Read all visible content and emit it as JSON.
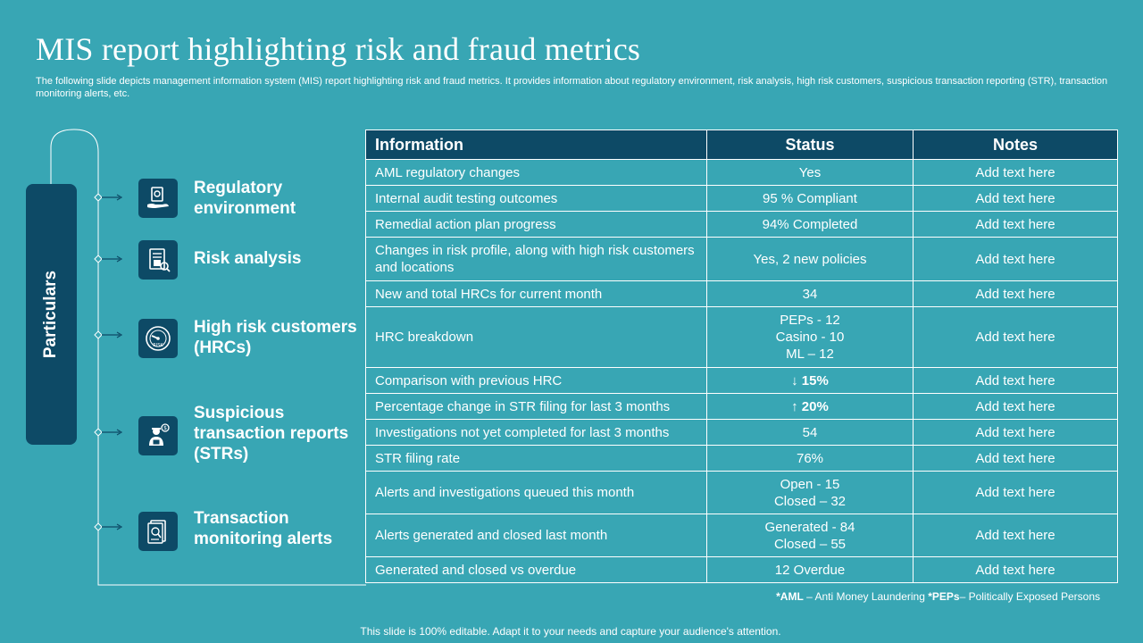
{
  "title": "MIS report highlighting risk and fraud metrics",
  "description": "The following slide depicts management information system (MIS) report highlighting risk and fraud metrics. It provides information about regulatory environment, risk analysis, high risk customers, suspicious transaction reporting (STR), transaction monitoring alerts, etc.",
  "particulars_label": "Particulars",
  "categories": [
    {
      "label": "Regulatory environment",
      "icon": "regulatory-icon"
    },
    {
      "label": "Risk analysis",
      "icon": "risk-analysis-icon"
    },
    {
      "label": "High risk customers (HRCs)",
      "icon": "risk-gauge-icon"
    },
    {
      "label": "Suspicious transaction reports (STRs)",
      "icon": "suspicious-report-icon"
    },
    {
      "label": "Transaction monitoring alerts",
      "icon": "monitoring-alert-icon"
    }
  ],
  "table": {
    "headers": [
      "Information",
      "Status",
      "Notes"
    ],
    "rows": [
      {
        "info": "AML regulatory changes",
        "status": "Yes",
        "notes": "Add text here"
      },
      {
        "info": "Internal  audit testing outcomes",
        "status": "95 % Compliant",
        "notes": "Add text here"
      },
      {
        "info": "Remedial action plan progress",
        "status": "94% Completed",
        "notes": "Add text here"
      },
      {
        "info": "Changes in risk profile, along with high risk customers and locations",
        "status": "Yes, 2 new policies",
        "notes": "Add text here"
      },
      {
        "info": "New and total HRCs for current month",
        "status": "34",
        "notes": "Add text here"
      },
      {
        "info": "HRC breakdown",
        "status_lines": [
          "PEPs - 12",
          "Casino - 10",
          "ML – 12"
        ],
        "notes": "Add text here"
      },
      {
        "info": "Comparison with previous HRC",
        "status": "↓ 15%",
        "status_bold": true,
        "notes": "Add text here"
      },
      {
        "info": "Percentage change in STR filing for last 3 months",
        "status": "↑ 20%",
        "status_bold": true,
        "notes": "Add text here"
      },
      {
        "info": "Investigations  not yet completed for last 3 months",
        "status": "54",
        "notes": "Add text here"
      },
      {
        "info": "STR filing rate",
        "status": "76%",
        "notes": "Add text here"
      },
      {
        "info": "Alerts and investigations queued this month",
        "status_lines": [
          "Open - 15",
          "Closed – 32"
        ],
        "notes": "Add text here"
      },
      {
        "info": "Alerts generated and closed last month",
        "status_lines": [
          "Generated - 84",
          "Closed – 55"
        ],
        "notes": "Add text here"
      },
      {
        "info": "Generated and closed vs overdue",
        "status": "12 Overdue",
        "notes": "Add text here"
      }
    ]
  },
  "footnote": {
    "aml_abbr": "*AML",
    "aml_text": " – Anti Money Laundering ",
    "pep_abbr": "*PEPs",
    "pep_text": "– Politically Exposed Persons"
  },
  "footer": "This slide is 100% editable. Adapt it to your needs and capture your audience's attention.",
  "colors": {
    "background": "#38a6b4",
    "dark_teal": "#0d4a66",
    "text": "#ffffff"
  }
}
